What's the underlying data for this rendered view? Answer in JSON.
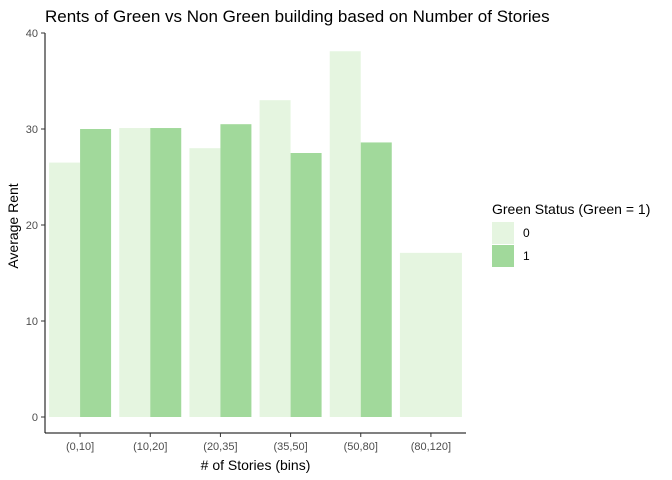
{
  "chart_data": {
    "type": "bar",
    "title": "Rents of Green vs Non Green building based on Number of Stories",
    "xlabel": "# of Stories (bins)",
    "ylabel": "Average Rent",
    "categories": [
      "(0,10]",
      "(10,20]",
      "(20,35]",
      "(35,50]",
      "(50,80]",
      "(80,120]"
    ],
    "ylim": [
      0,
      40
    ],
    "yticks": [
      0,
      10,
      20,
      30,
      40
    ],
    "grid": false,
    "legend": {
      "title": "Green Status (Green = 1)",
      "placement": "right"
    },
    "series": [
      {
        "name": "0",
        "color": "#e5f5e0",
        "values": [
          26.5,
          30.1,
          28.0,
          33.0,
          38.1,
          17.1
        ]
      },
      {
        "name": "1",
        "color": "#a1d99b",
        "values": [
          30.0,
          30.1,
          30.5,
          27.5,
          28.6,
          null
        ]
      }
    ]
  }
}
